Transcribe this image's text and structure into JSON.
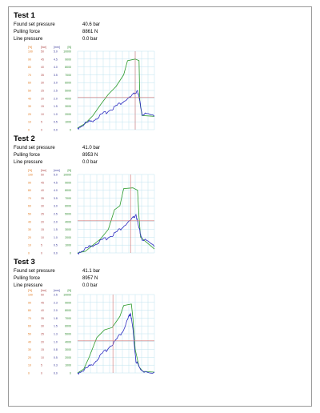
{
  "tests": [
    {
      "title": "Test 1",
      "rows": [
        {
          "label": "Found set pressure",
          "value": "40.6 bar"
        },
        {
          "label": "Pulling force",
          "value": "8861 N"
        },
        {
          "label": "Line pressure",
          "value": "0.0 bar"
        }
      ],
      "axis_headers": [
        "[%]",
        "[bar]",
        "[mm]",
        "[N]"
      ],
      "axis_ticks": {
        "pct": [
          "100",
          "90",
          "80",
          "70",
          "60",
          "50",
          "40",
          "30",
          "20",
          "10",
          "0"
        ],
        "bar": [
          "50",
          "45",
          "40",
          "35",
          "30",
          "25",
          "20",
          "15",
          "10",
          "5",
          "0"
        ],
        "mm": [
          "5.0",
          "4.5",
          "4.0",
          "3.5",
          "3.0",
          "2.5",
          "2.0",
          "1.5",
          "1.0",
          "0.5",
          "0.0"
        ],
        "N": [
          "10000",
          "9000",
          "8000",
          "7000",
          "6000",
          "5000",
          "4000",
          "3000",
          "2000",
          "1000",
          "0"
        ]
      }
    },
    {
      "title": "Test 2",
      "rows": [
        {
          "label": "Found set pressure",
          "value": "41.0 bar"
        },
        {
          "label": "Pulling force",
          "value": "8953 N"
        },
        {
          "label": "Line pressure",
          "value": "0.0 bar"
        }
      ],
      "axis_headers": [
        "[%]",
        "[bar]",
        "[mm]",
        "[N]"
      ],
      "axis_ticks": {
        "pct": [
          "100",
          "90",
          "80",
          "70",
          "60",
          "50",
          "40",
          "30",
          "20",
          "10",
          "0"
        ],
        "bar": [
          "50",
          "45",
          "40",
          "35",
          "30",
          "25",
          "20",
          "15",
          "10",
          "5",
          "0"
        ],
        "mm": [
          "5.0",
          "4.5",
          "4.0",
          "3.5",
          "3.0",
          "2.5",
          "2.0",
          "1.5",
          "1.0",
          "0.5",
          "0.0"
        ],
        "N": [
          "10000",
          "9000",
          "8000",
          "7000",
          "6000",
          "5000",
          "4000",
          "3000",
          "2000",
          "1000",
          "0"
        ]
      }
    },
    {
      "title": "Test 3",
      "rows": [
        {
          "label": "Found set pressure",
          "value": "41.1 bar"
        },
        {
          "label": "Pulling force",
          "value": "8957 N"
        },
        {
          "label": "Line pressure",
          "value": "0.0 bar"
        }
      ],
      "axis_headers": [
        "[%]",
        "[bar]",
        "[mm]",
        "[N]"
      ],
      "axis_ticks": {
        "pct": [
          "100",
          "90",
          "80",
          "70",
          "60",
          "50",
          "40",
          "30",
          "20",
          "10",
          "0"
        ],
        "bar": [
          "50",
          "45",
          "40",
          "35",
          "30",
          "25",
          "20",
          "15",
          "10",
          "5",
          "0"
        ],
        "mm": [
          "2.5",
          "2.3",
          "2.0",
          "1.8",
          "1.5",
          "1.3",
          "1.0",
          "0.8",
          "0.5",
          "0.3",
          "0.0"
        ],
        "N": [
          "10000",
          "9000",
          "8000",
          "7000",
          "6000",
          "5000",
          "4000",
          "3000",
          "2000",
          "1000",
          "0"
        ]
      }
    }
  ],
  "colors": {
    "pct": "#e0781e",
    "bar": "#b04a4a",
    "mm": "#3a3a9a",
    "N": "#2e8b2e",
    "grid": "#bfe3ef",
    "force_line": "#2a9a2a",
    "pressure_line": "#2b2bc0",
    "set_pressure_marker": "#d07070"
  },
  "chart_data": [
    {
      "type": "line",
      "series": [
        {
          "points": [
            [
              0,
              0.02
            ],
            [
              10,
              0.08
            ],
            [
              20,
              0.18
            ],
            [
              30,
              0.32
            ],
            [
              40,
              0.45
            ],
            [
              50,
              0.55
            ],
            [
              60,
              0.7
            ],
            [
              65,
              0.88
            ],
            [
              75,
              0.9
            ],
            [
              80,
              0.88
            ],
            [
              81,
              0.35
            ],
            [
              84,
              0.18
            ],
            [
              100,
              0.17
            ]
          ],
          "role": "force"
        },
        {
          "points": [
            [
              0,
              0.02
            ],
            [
              10,
              0.08
            ],
            [
              20,
              0.12
            ],
            [
              30,
              0.18
            ],
            [
              40,
              0.24
            ],
            [
              50,
              0.3
            ],
            [
              60,
              0.36
            ],
            [
              70,
              0.42
            ],
            [
              78,
              0.5
            ],
            [
              81,
              0.35
            ],
            [
              84,
              0.2
            ],
            [
              100,
              0.17
            ]
          ],
          "role": "pressure"
        }
      ],
      "set_pressure_marker": {
        "x": 75,
        "y": 0.41
      }
    },
    {
      "type": "line",
      "series": [
        {
          "points": [
            [
              0,
              0.0
            ],
            [
              10,
              0.02
            ],
            [
              20,
              0.1
            ],
            [
              30,
              0.18
            ],
            [
              40,
              0.3
            ],
            [
              48,
              0.55
            ],
            [
              55,
              0.6
            ],
            [
              60,
              0.82
            ],
            [
              72,
              0.83
            ],
            [
              78,
              0.8
            ],
            [
              80,
              0.45
            ],
            [
              82,
              0.2
            ],
            [
              100,
              0.05
            ]
          ],
          "role": "force"
        },
        {
          "points": [
            [
              0,
              0.0
            ],
            [
              10,
              0.05
            ],
            [
              20,
              0.1
            ],
            [
              30,
              0.15
            ],
            [
              40,
              0.2
            ],
            [
              50,
              0.26
            ],
            [
              60,
              0.34
            ],
            [
              70,
              0.42
            ],
            [
              76,
              0.49
            ],
            [
              80,
              0.3
            ],
            [
              84,
              0.18
            ],
            [
              100,
              0.08
            ]
          ],
          "role": "pressure"
        }
      ],
      "set_pressure_marker": {
        "x": 69,
        "y": 0.41
      }
    },
    {
      "type": "line",
      "series": [
        {
          "points": [
            [
              0,
              0.0
            ],
            [
              8,
              0.05
            ],
            [
              15,
              0.2
            ],
            [
              25,
              0.45
            ],
            [
              35,
              0.55
            ],
            [
              45,
              0.58
            ],
            [
              55,
              0.72
            ],
            [
              60,
              0.86
            ],
            [
              70,
              0.88
            ],
            [
              72,
              0.7
            ],
            [
              75,
              0.3
            ],
            [
              80,
              0.08
            ],
            [
              85,
              0.02
            ],
            [
              100,
              0.01
            ]
          ],
          "role": "force"
        },
        {
          "points": [
            [
              0,
              0.0
            ],
            [
              10,
              0.05
            ],
            [
              20,
              0.12
            ],
            [
              30,
              0.22
            ],
            [
              40,
              0.32
            ],
            [
              50,
              0.42
            ],
            [
              60,
              0.55
            ],
            [
              66,
              0.7
            ],
            [
              69,
              0.76
            ],
            [
              72,
              0.55
            ],
            [
              76,
              0.15
            ],
            [
              82,
              0.03
            ],
            [
              100,
              0.01
            ]
          ],
          "role": "pressure"
        }
      ],
      "set_pressure_marker": {
        "x": 46,
        "y": 0.41
      }
    }
  ]
}
